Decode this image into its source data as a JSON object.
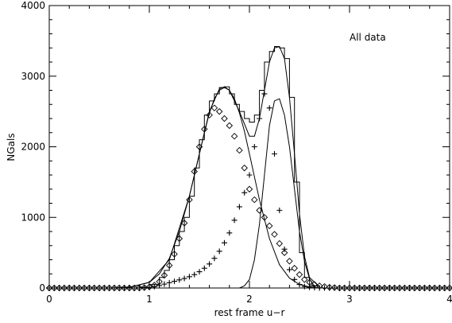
{
  "chart_data": {
    "type": "line",
    "title": "",
    "annotation": "All data",
    "xlabel": "rest frame u−r",
    "ylabel": "NGals",
    "xlim": [
      0,
      4
    ],
    "ylim": [
      0,
      4000
    ],
    "xticks": [
      0,
      1,
      2,
      3,
      4
    ],
    "yticks": [
      0,
      1000,
      2000,
      3000,
      4000
    ],
    "xtick_labels": [
      "0",
      "1",
      "2",
      "3",
      "4"
    ],
    "ytick_labels": [
      "0",
      "1000",
      "2000",
      "3000",
      "4000"
    ],
    "grid": false,
    "legend": "none",
    "colors": {
      "ink": "#000000",
      "background": "#ffffff"
    },
    "series": [
      {
        "type": "step",
        "bins": [
          0.8,
          0.9,
          1.0,
          1.1,
          1.15,
          1.2,
          1.25,
          1.3,
          1.35,
          1.4,
          1.45,
          1.5,
          1.55,
          1.6,
          1.65,
          1.7,
          1.75,
          1.8,
          1.85,
          1.9,
          1.95,
          2.0,
          2.05,
          2.1,
          2.15,
          2.2,
          2.25,
          2.3,
          2.35,
          2.4,
          2.45,
          2.5,
          2.55,
          2.6,
          2.7
        ],
        "values": [
          0,
          10,
          50,
          150,
          250,
          400,
          600,
          800,
          1000,
          1300,
          1700,
          2100,
          2450,
          2650,
          2750,
          2840,
          2850,
          2750,
          2600,
          2500,
          2400,
          2350,
          2450,
          2800,
          3200,
          3350,
          3420,
          3400,
          3250,
          2700,
          1500,
          500,
          150,
          30
        ]
      },
      {
        "type": "line",
        "x": [
          0.6,
          0.8,
          1.0,
          1.1,
          1.2,
          1.3,
          1.4,
          1.5,
          1.55,
          1.6,
          1.65,
          1.7,
          1.75,
          1.8,
          1.85,
          1.9,
          1.95,
          2.0,
          2.1,
          2.2,
          2.3,
          2.4,
          2.5,
          2.6,
          2.7
        ],
        "y": [
          0,
          10,
          80,
          200,
          420,
          800,
          1300,
          1900,
          2200,
          2480,
          2680,
          2800,
          2840,
          2800,
          2680,
          2480,
          2220,
          1900,
          1250,
          700,
          330,
          140,
          50,
          15,
          0
        ]
      },
      {
        "type": "line",
        "x": [
          1.9,
          1.95,
          2.0,
          2.05,
          2.1,
          2.15,
          2.2,
          2.25,
          2.3,
          2.35,
          2.4,
          2.45,
          2.5,
          2.55,
          2.6,
          2.65
        ],
        "y": [
          0,
          30,
          120,
          400,
          900,
          1600,
          2300,
          2650,
          2680,
          2450,
          2000,
          1400,
          800,
          380,
          130,
          20
        ]
      },
      {
        "type": "line",
        "x": [
          0.8,
          1.0,
          1.2,
          1.4,
          1.5,
          1.6,
          1.7,
          1.75,
          1.8,
          1.9,
          2.0,
          2.05,
          2.1,
          2.15,
          2.2,
          2.25,
          2.3,
          2.35,
          2.4,
          2.45,
          2.5,
          2.55,
          2.6,
          2.7
        ],
        "y": [
          10,
          80,
          400,
          1300,
          1900,
          2500,
          2820,
          2850,
          2800,
          2500,
          2150,
          2150,
          2400,
          2800,
          3200,
          3400,
          3420,
          3250,
          2700,
          1900,
          1050,
          450,
          150,
          15
        ]
      },
      {
        "type": "scatter",
        "marker": "diamond",
        "x": [
          0.0,
          0.05,
          0.1,
          0.15,
          0.2,
          0.25,
          0.3,
          0.35,
          0.4,
          0.45,
          0.5,
          0.55,
          0.6,
          0.65,
          0.7,
          0.75,
          0.8,
          0.85,
          0.9,
          0.95,
          1.0,
          1.05,
          1.1,
          1.15,
          1.2,
          1.25,
          1.3,
          1.35,
          1.4,
          1.45,
          1.5,
          1.55,
          1.6,
          1.65,
          1.7,
          1.75,
          1.8,
          1.85,
          1.9,
          1.95,
          2.0,
          2.05,
          2.1,
          2.15,
          2.2,
          2.25,
          2.3,
          2.35,
          2.4,
          2.45,
          2.5,
          2.55,
          2.6,
          2.65,
          2.7,
          2.75,
          2.8,
          2.85,
          2.9,
          2.95,
          3.0,
          3.05,
          3.1,
          3.15,
          3.2,
          3.25,
          3.3,
          3.35,
          3.4,
          3.45,
          3.5,
          3.55,
          3.6,
          3.65,
          3.7,
          3.75,
          3.8,
          3.85,
          3.9,
          3.95,
          4.0
        ],
        "y": [
          0,
          0,
          0,
          0,
          0,
          0,
          0,
          0,
          0,
          0,
          0,
          0,
          0,
          0,
          0,
          0,
          0,
          0,
          0,
          5,
          15,
          40,
          90,
          180,
          320,
          480,
          700,
          920,
          1250,
          1650,
          2000,
          2250,
          2450,
          2550,
          2500,
          2400,
          2300,
          2150,
          1950,
          1700,
          1400,
          1250,
          1100,
          1000,
          880,
          760,
          630,
          500,
          380,
          280,
          190,
          120,
          80,
          50,
          30,
          20,
          10,
          5,
          0,
          0,
          0,
          0,
          0,
          0,
          0,
          0,
          0,
          0,
          0,
          0,
          0,
          0,
          0,
          0,
          0,
          0,
          0,
          0,
          0,
          0,
          0
        ]
      },
      {
        "type": "scatter",
        "marker": "plus",
        "x": [
          0.0,
          0.05,
          0.1,
          0.15,
          0.2,
          0.25,
          0.3,
          0.35,
          0.4,
          0.45,
          0.5,
          0.55,
          0.6,
          0.65,
          0.7,
          0.75,
          0.8,
          0.85,
          0.9,
          0.95,
          1.0,
          1.05,
          1.1,
          1.15,
          1.2,
          1.25,
          1.3,
          1.35,
          1.4,
          1.45,
          1.5,
          1.55,
          1.6,
          1.65,
          1.7,
          1.75,
          1.8,
          1.85,
          1.9,
          1.95,
          2.0,
          2.05,
          2.1,
          2.15,
          2.2,
          2.25,
          2.3,
          2.35,
          2.4,
          2.45,
          2.5,
          2.55,
          2.6,
          2.65,
          2.7,
          2.75,
          2.8,
          2.85,
          2.9,
          2.95,
          3.0,
          3.05,
          3.1,
          3.15,
          3.2,
          3.25,
          3.3,
          3.35,
          3.4,
          3.45,
          3.5,
          3.55,
          3.6,
          3.65,
          3.7,
          3.75,
          3.8,
          3.85,
          3.9,
          3.95,
          4.0
        ],
        "y": [
          0,
          0,
          0,
          0,
          0,
          0,
          0,
          0,
          0,
          0,
          0,
          0,
          0,
          0,
          0,
          0,
          0,
          0,
          0,
          5,
          10,
          20,
          35,
          55,
          75,
          95,
          115,
          135,
          160,
          190,
          230,
          280,
          340,
          420,
          520,
          640,
          780,
          960,
          1150,
          1350,
          1600,
          2000,
          2400,
          2750,
          2550,
          1900,
          1100,
          550,
          260,
          120,
          50,
          20,
          10,
          5,
          0,
          0,
          0,
          0,
          0,
          0,
          0,
          0,
          0,
          0,
          0,
          0,
          0,
          0,
          0,
          0,
          0,
          0,
          0,
          0,
          0,
          0,
          0,
          0,
          0,
          0,
          0
        ]
      }
    ]
  }
}
